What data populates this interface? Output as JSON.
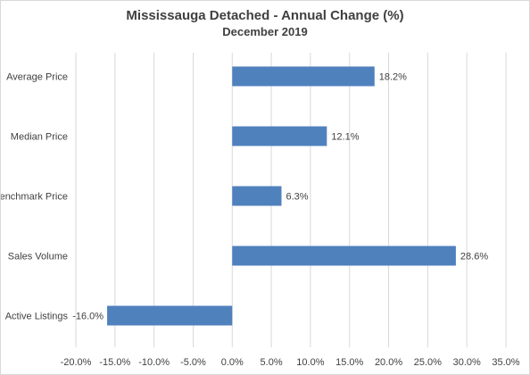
{
  "chart_data": {
    "type": "bar",
    "orientation": "horizontal",
    "title": "Mississauga Detached - Annual Change (%)",
    "subtitle": "December 2019",
    "categories": [
      "Average Price",
      "Median Price",
      "Benchmark Price",
      "Sales Volume",
      "Active Listings"
    ],
    "values": [
      18.2,
      12.1,
      6.3,
      28.6,
      -16.0
    ],
    "data_labels": [
      "18.2%",
      "12.1%",
      "6.3%",
      "28.6%",
      "-16.0%"
    ],
    "xlim": [
      -20,
      35
    ],
    "x_ticks": [
      -20,
      -15,
      -10,
      -5,
      0,
      5,
      10,
      15,
      20,
      25,
      30,
      35
    ],
    "x_tick_labels": [
      "-20.0%",
      "-15.0%",
      "-10.0%",
      "-5.0%",
      "0.0%",
      "5.0%",
      "10.0%",
      "15.0%",
      "20.0%",
      "25.0%",
      "30.0%",
      "35.0%"
    ],
    "xlabel": "",
    "ylabel": "",
    "grid": "vertical",
    "legend": "none",
    "bar_color": "#4f81bd",
    "grid_color": "#d9d9d9"
  }
}
